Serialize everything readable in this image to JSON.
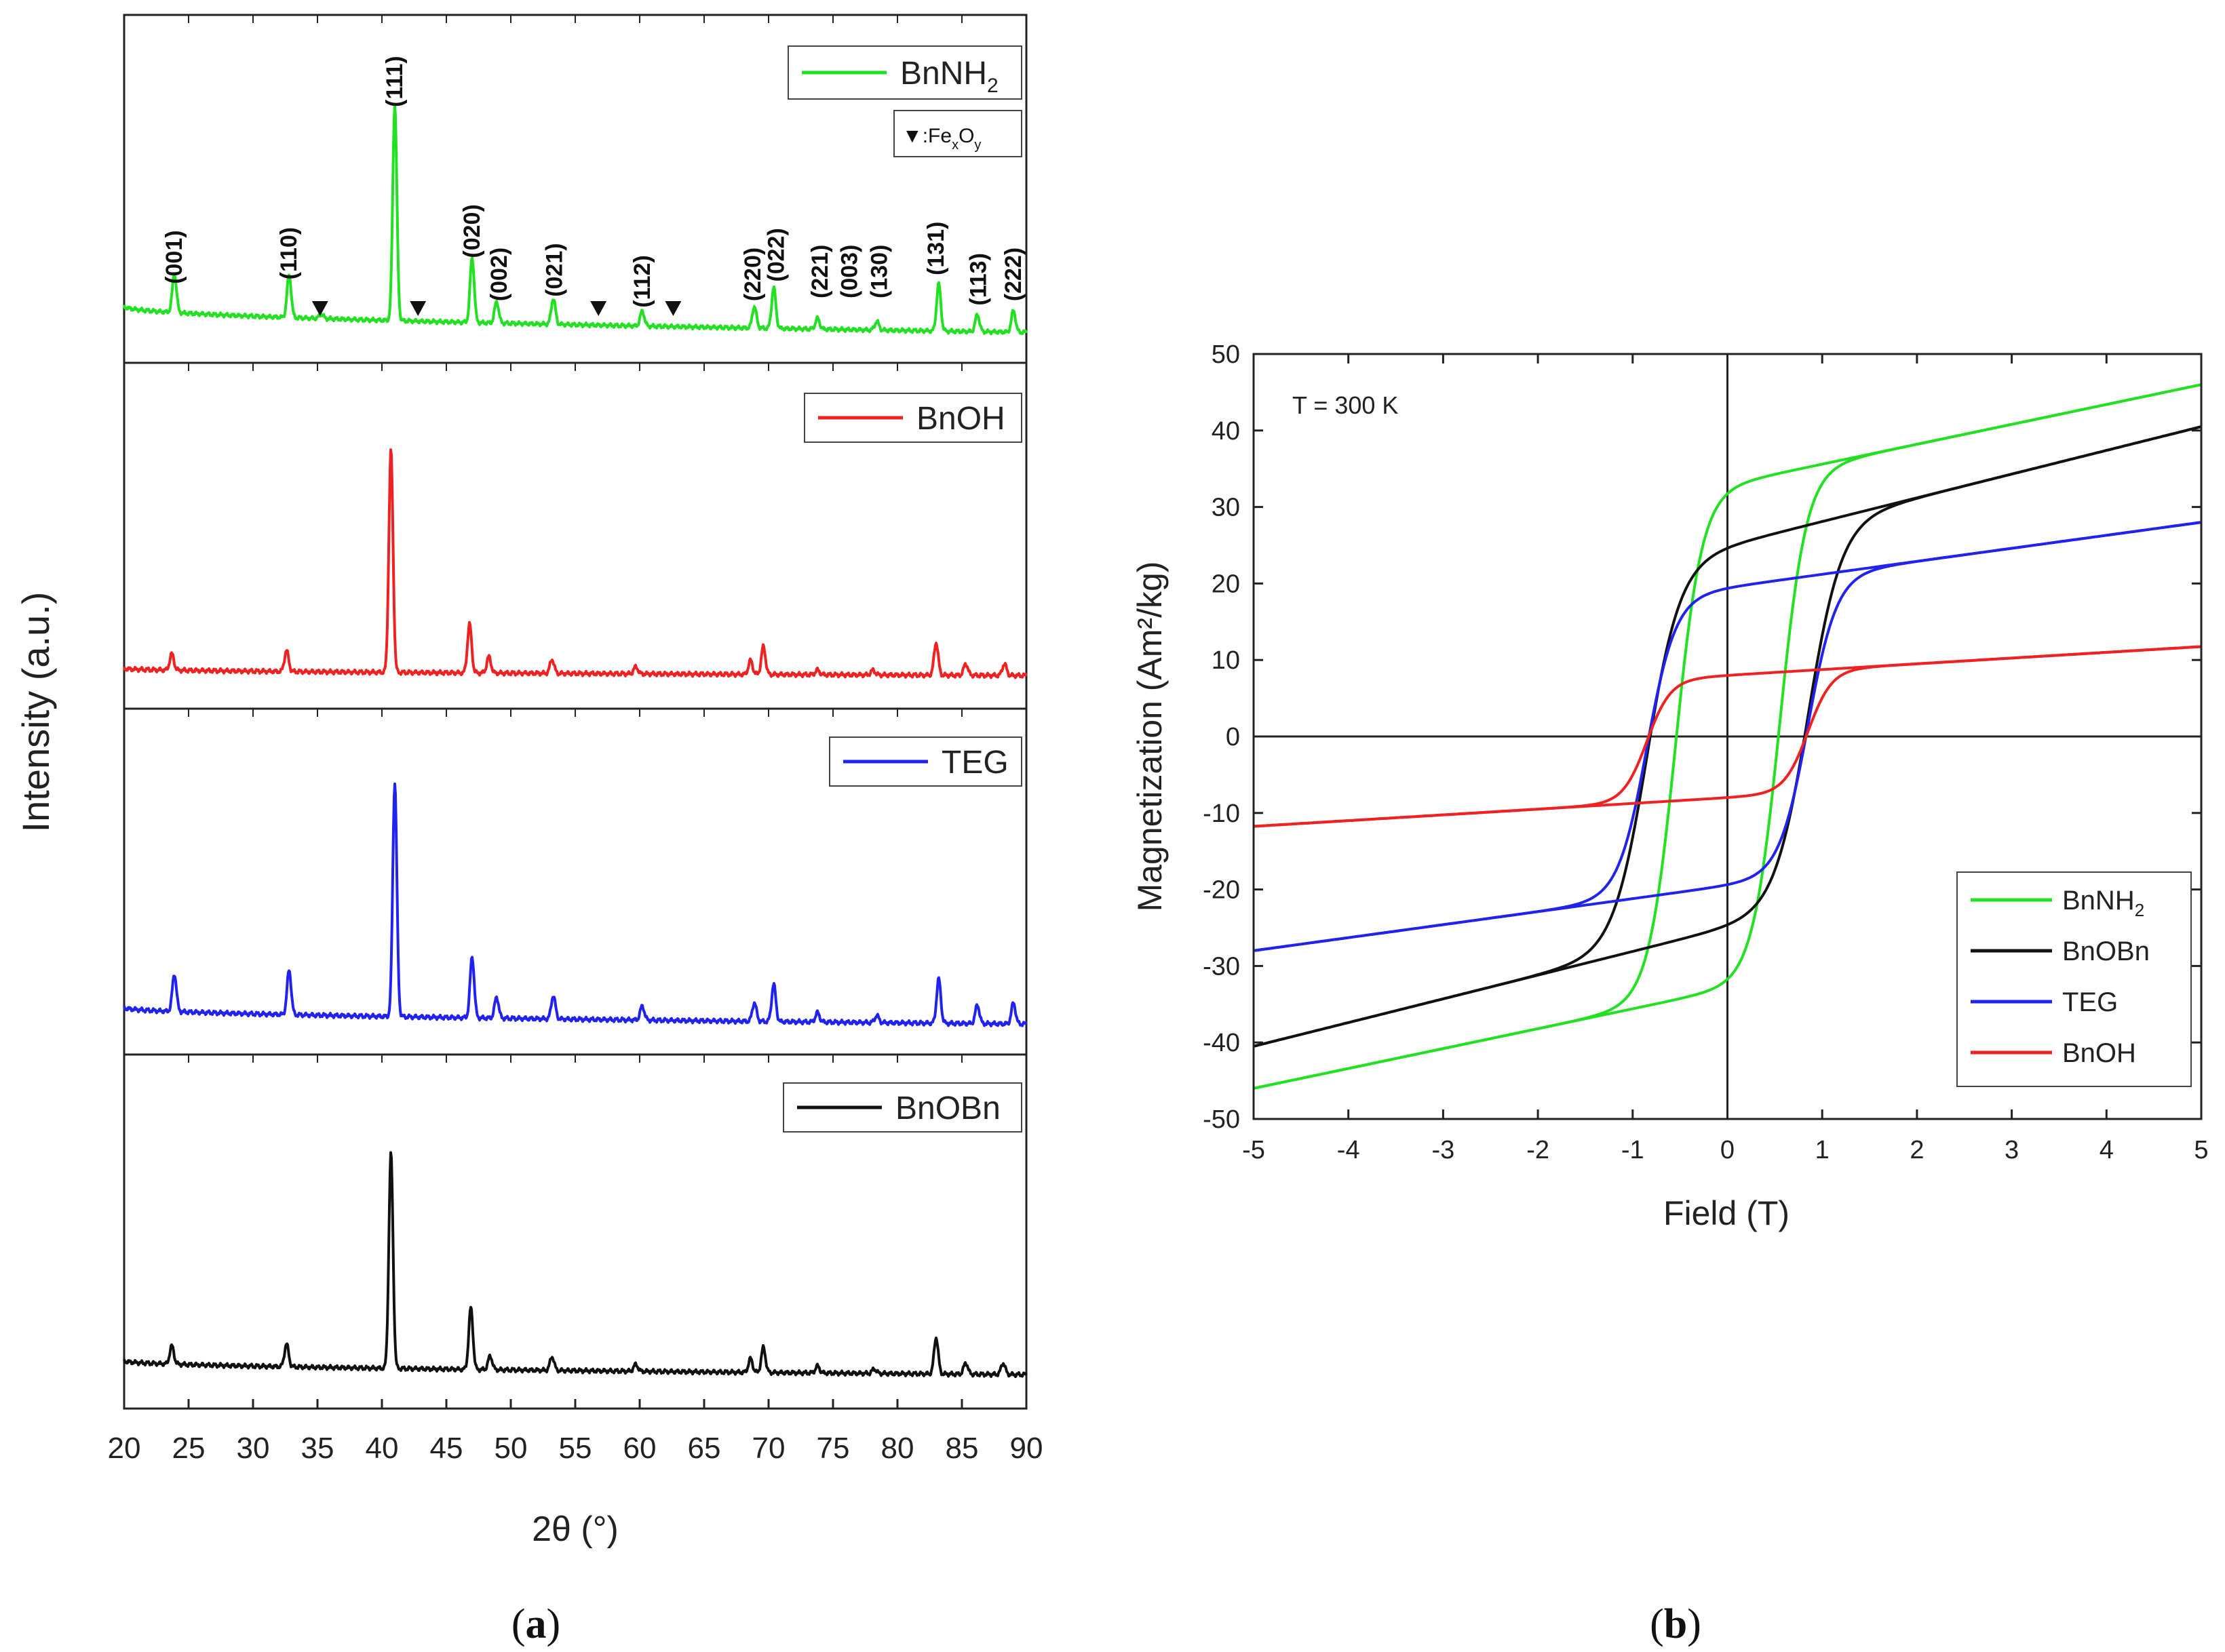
{
  "panel_a": {
    "caption": "(a)",
    "xlabel": "2θ (°)",
    "ylabel": "Intensity (a.u.)",
    "xlim": [
      20,
      90
    ],
    "xticks": [
      20,
      25,
      30,
      35,
      40,
      45,
      50,
      55,
      60,
      65,
      70,
      75,
      80,
      85,
      90
    ],
    "marker_legend_symbol": "▼",
    "marker_legend_text": ":Fe",
    "marker_legend_sub1": "x",
    "marker_legend_mid": "O",
    "marker_legend_sub2": "y"
  },
  "panel_b": {
    "caption": "(b)",
    "annotation": "T = 300 K"
  },
  "chart_data": [
    {
      "type": "line",
      "title": "(a)",
      "xlabel": "2θ (°)",
      "ylabel": "Intensity (a.u.)",
      "xlim": [
        20,
        90
      ],
      "stacked": true,
      "series": [
        {
          "name": "BnNH2",
          "legend_main": "BnNH",
          "legend_sub": "2",
          "color": "#22e022",
          "baseline_start": 0.12,
          "baseline_end": 0.0,
          "peaks": [
            [
              23.9,
              0.18
            ],
            [
              32.8,
              0.2
            ],
            [
              35.3,
              0.02
            ],
            [
              41.0,
              1.0
            ],
            [
              47.0,
              0.3
            ],
            [
              48.9,
              0.1
            ],
            [
              53.3,
              0.12
            ],
            [
              60.2,
              0.07
            ],
            [
              68.9,
              0.1
            ],
            [
              70.4,
              0.19
            ],
            [
              73.8,
              0.05
            ],
            [
              78.4,
              0.04
            ],
            [
              83.2,
              0.22
            ],
            [
              86.2,
              0.08
            ],
            [
              89.0,
              0.1
            ]
          ],
          "hkl_labels": [
            {
              "x": 23.9,
              "label": "(001)"
            },
            {
              "x": 32.8,
              "label": "(110)"
            },
            {
              "x": 41.0,
              "label": "(111)"
            },
            {
              "x": 47.0,
              "label": "(020)"
            },
            {
              "x": 49.1,
              "label": "(002)"
            },
            {
              "x": 53.4,
              "label": "(021)"
            },
            {
              "x": 60.2,
              "label": "(112)"
            },
            {
              "x": 68.8,
              "label": "(220)"
            },
            {
              "x": 70.6,
              "label": "(022)"
            },
            {
              "x": 74.0,
              "label": "(221)"
            },
            {
              "x": 76.3,
              "label": "(003)"
            },
            {
              "x": 78.6,
              "label": "(130)"
            },
            {
              "x": 83.0,
              "label": "(131)"
            },
            {
              "x": 86.3,
              "label": "(113)"
            },
            {
              "x": 89.0,
              "label": "(222)"
            }
          ],
          "fexoy_markers": [
            35.2,
            42.8,
            56.8,
            62.6
          ]
        },
        {
          "name": "BnOH",
          "legend_main": "BnOH",
          "legend_sub": "",
          "color": "#ee2222",
          "baseline_start": 0.05,
          "baseline_end": 0.02,
          "peaks": [
            [
              23.7,
              0.07
            ],
            [
              32.6,
              0.09
            ],
            [
              40.7,
              0.95
            ],
            [
              46.8,
              0.21
            ],
            [
              48.3,
              0.07
            ],
            [
              53.2,
              0.06
            ],
            [
              59.7,
              0.03
            ],
            [
              68.6,
              0.06
            ],
            [
              69.6,
              0.12
            ],
            [
              73.8,
              0.02
            ],
            [
              78.1,
              0.02
            ],
            [
              83.0,
              0.14
            ],
            [
              85.3,
              0.05
            ],
            [
              88.3,
              0.05
            ]
          ]
        },
        {
          "name": "TEG",
          "legend_main": "TEG",
          "legend_sub": "",
          "color": "#2222ee",
          "baseline_start": 0.07,
          "baseline_end": 0.0,
          "peaks": [
            [
              23.9,
              0.16
            ],
            [
              32.8,
              0.19
            ],
            [
              41.0,
              1.0
            ],
            [
              47.0,
              0.26
            ],
            [
              48.9,
              0.09
            ],
            [
              53.3,
              0.1
            ],
            [
              60.2,
              0.06
            ],
            [
              68.9,
              0.08
            ],
            [
              70.4,
              0.16
            ],
            [
              73.8,
              0.04
            ],
            [
              78.4,
              0.03
            ],
            [
              83.2,
              0.19
            ],
            [
              86.2,
              0.08
            ],
            [
              89.0,
              0.09
            ]
          ]
        },
        {
          "name": "BnOBn",
          "legend_main": "BnOBn",
          "legend_sub": "",
          "color": "#111111",
          "baseline_start": 0.06,
          "baseline_end": 0.0,
          "peaks": [
            [
              23.7,
              0.08
            ],
            [
              32.6,
              0.1
            ],
            [
              40.7,
              0.94
            ],
            [
              46.9,
              0.27
            ],
            [
              48.4,
              0.06
            ],
            [
              53.2,
              0.06
            ],
            [
              59.7,
              0.03
            ],
            [
              68.6,
              0.06
            ],
            [
              69.6,
              0.11
            ],
            [
              73.8,
              0.03
            ],
            [
              78.2,
              0.02
            ],
            [
              83.0,
              0.16
            ],
            [
              85.3,
              0.05
            ],
            [
              88.2,
              0.05
            ]
          ]
        }
      ]
    },
    {
      "type": "line",
      "title": "(b)",
      "xlabel": "Field (T)",
      "ylabel": "Magnetization (Am²/kg)",
      "xlim": [
        -5,
        5
      ],
      "ylim": [
        -50,
        50
      ],
      "xticks": [
        -5,
        -4,
        -3,
        -2,
        -1,
        0,
        1,
        2,
        3,
        4,
        5
      ],
      "yticks": [
        -50,
        -40,
        -30,
        -20,
        -10,
        0,
        10,
        20,
        30,
        40,
        50
      ],
      "annotation": "T = 300 K",
      "series": [
        {
          "name": "BnNH2",
          "legend_main": "BnNH",
          "legend_sub": "2",
          "color": "#22e022",
          "ms": 33,
          "hc": 0.55,
          "w": 0.28,
          "slope": 2.6
        },
        {
          "name": "BnOBn",
          "legend_main": "BnOBn",
          "legend_sub": "",
          "color": "#111111",
          "ms": 25,
          "hc": 0.85,
          "w": 0.35,
          "slope": 3.1
        },
        {
          "name": "TEG",
          "legend_main": "TEG",
          "legend_sub": "",
          "color": "#2222ee",
          "ms": 19.5,
          "hc": 0.85,
          "w": 0.3,
          "slope": 1.7
        },
        {
          "name": "BnOH",
          "legend_main": "BnOH",
          "legend_sub": "",
          "color": "#ee2222",
          "ms": 8.0,
          "hc": 0.85,
          "w": 0.25,
          "slope": 0.75
        }
      ]
    }
  ]
}
